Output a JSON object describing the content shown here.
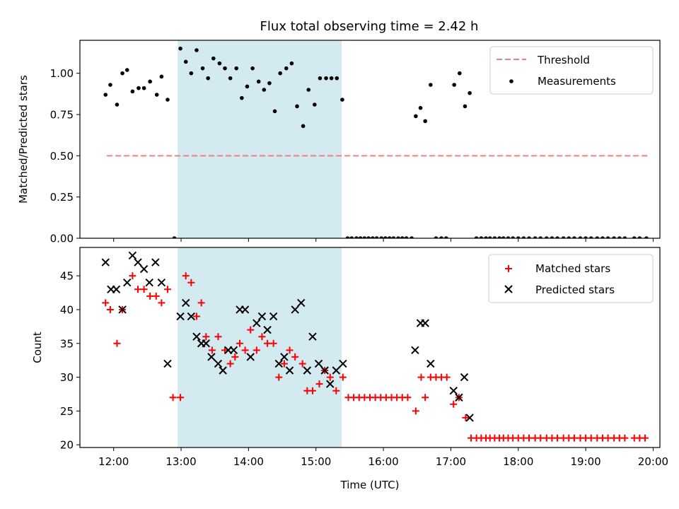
{
  "figure_title": "Flux total observing time = 2.42 h",
  "chart_data": [
    {
      "type": "scatter",
      "panel": "top",
      "ylabel": "Matched/Predicted stars",
      "xlim": [
        11.5,
        20.1
      ],
      "ylim": [
        0,
        1.2
      ],
      "yticks": [
        0.0,
        0.25,
        0.5,
        0.75,
        1.0
      ],
      "ytick_labels": [
        "0.00",
        "0.25",
        "0.50",
        "0.75",
        "1.00"
      ],
      "grid": false,
      "legend": "top-right",
      "highlight_span": [
        12.95,
        15.38
      ],
      "colors": {
        "span": "#d3eaf1",
        "threshold": "#f08080",
        "measurements": "#000000"
      },
      "threshold": {
        "name": "Threshold",
        "y": 0.5,
        "x_start": 11.9,
        "x_end": 19.92
      },
      "measurements": {
        "name": "Measurements",
        "x": [
          11.88,
          11.95,
          12.05,
          12.13,
          12.2,
          12.28,
          12.37,
          12.45,
          12.54,
          12.64,
          12.71,
          12.8,
          12.9,
          12.99,
          13.07,
          13.15,
          13.23,
          13.32,
          13.4,
          13.48,
          13.57,
          13.65,
          13.73,
          13.82,
          13.9,
          13.98,
          14.06,
          14.15,
          14.23,
          14.31,
          14.39,
          14.47,
          14.56,
          14.64,
          14.72,
          14.81,
          14.89,
          14.98,
          15.06,
          15.15,
          15.23,
          15.31,
          15.39,
          15.47,
          15.53,
          15.6,
          15.66,
          15.72,
          15.78,
          15.84,
          15.9,
          15.97,
          16.03,
          16.09,
          16.15,
          16.22,
          16.28,
          16.34,
          16.42,
          16.48,
          16.55,
          16.62,
          16.7,
          16.78,
          16.86,
          16.93,
          17.05,
          17.13,
          17.21,
          17.28,
          17.38,
          17.45,
          17.52,
          17.58,
          17.65,
          17.72,
          17.78,
          17.85,
          17.92,
          18.0,
          18.08,
          18.16,
          18.25,
          18.33,
          18.42,
          18.5,
          18.58,
          18.67,
          18.75,
          18.83,
          18.92,
          19.0,
          19.08,
          19.17,
          19.25,
          19.33,
          19.42,
          19.5,
          19.58,
          19.72,
          19.8,
          19.9
        ],
        "y": [
          0.87,
          0.93,
          0.81,
          1.0,
          1.02,
          0.89,
          0.91,
          0.91,
          0.95,
          0.87,
          0.98,
          0.84,
          0.0,
          1.15,
          1.07,
          1.0,
          1.14,
          1.03,
          0.97,
          1.09,
          1.06,
          1.03,
          0.97,
          1.03,
          0.85,
          0.92,
          1.03,
          0.95,
          0.9,
          0.94,
          0.77,
          1.0,
          1.03,
          1.06,
          0.8,
          0.68,
          0.9,
          0.81,
          0.97,
          0.97,
          0.97,
          0.97,
          0.84,
          0.0,
          0.0,
          0.0,
          0.0,
          0.0,
          0.0,
          0.0,
          0.0,
          0.0,
          0.0,
          0.0,
          0.0,
          0.0,
          0.0,
          0.0,
          0.0,
          0.74,
          0.79,
          0.71,
          0.93,
          0.0,
          0.0,
          0.0,
          0.93,
          1.0,
          0.8,
          0.88,
          0.0,
          0.0,
          0.0,
          0.0,
          0.0,
          0.0,
          0.0,
          0.0,
          0.0,
          0.0,
          0.0,
          0.0,
          0.0,
          0.0,
          0.0,
          0.0,
          0.0,
          0.0,
          0.0,
          0.0,
          0.0,
          0.0,
          0.0,
          0.0,
          0.0,
          0.0,
          0.0,
          0.0,
          0.0,
          0.0,
          0.0,
          0.0
        ]
      }
    },
    {
      "type": "scatter",
      "panel": "bottom",
      "xlabel": "Time (UTC)",
      "ylabel": "Count",
      "xlim": [
        11.5,
        20.1
      ],
      "ylim": [
        19.6,
        49.2
      ],
      "yticks": [
        20,
        25,
        30,
        35,
        40,
        45
      ],
      "ytick_labels": [
        "20",
        "25",
        "30",
        "35",
        "40",
        "45"
      ],
      "xticks": [
        12,
        13,
        14,
        15,
        16,
        17,
        18,
        19,
        20
      ],
      "xtick_labels": [
        "12:00",
        "13:00",
        "14:00",
        "15:00",
        "16:00",
        "17:00",
        "18:00",
        "19:00",
        "20:00"
      ],
      "grid": false,
      "legend": "top-right",
      "highlight_span": [
        12.95,
        15.38
      ],
      "colors": {
        "span": "#d3eaf1",
        "matched": "#ff0000",
        "predicted": "#000000"
      },
      "series": [
        {
          "name": "Matched stars",
          "marker": "plus",
          "x": [
            11.88,
            11.95,
            12.05,
            12.13,
            12.28,
            12.36,
            12.45,
            12.54,
            12.63,
            12.71,
            12.8,
            12.88,
            12.99,
            13.07,
            13.15,
            13.23,
            13.3,
            13.37,
            13.46,
            13.55,
            13.65,
            13.73,
            13.8,
            13.87,
            13.95,
            14.03,
            14.12,
            14.2,
            14.28,
            14.37,
            14.45,
            14.53,
            14.61,
            14.69,
            14.8,
            14.87,
            14.95,
            15.05,
            15.13,
            15.21,
            15.3,
            15.4,
            15.48,
            15.56,
            15.64,
            15.72,
            15.8,
            15.88,
            15.96,
            16.04,
            16.12,
            16.2,
            16.28,
            16.36,
            16.48,
            16.56,
            16.62,
            16.7,
            16.78,
            16.86,
            16.94,
            17.04,
            17.12,
            17.22,
            17.3,
            17.38,
            17.45,
            17.52,
            17.58,
            17.65,
            17.72,
            17.78,
            17.85,
            17.92,
            18.0,
            18.08,
            18.16,
            18.25,
            18.33,
            18.42,
            18.5,
            18.58,
            18.67,
            18.75,
            18.83,
            18.92,
            19.0,
            19.08,
            19.17,
            19.25,
            19.33,
            19.42,
            19.5,
            19.58,
            19.72,
            19.8,
            19.88
          ],
          "y": [
            41,
            40,
            35,
            40,
            45,
            43,
            43,
            42,
            42,
            41,
            43,
            27,
            27,
            45,
            44,
            39,
            41,
            36,
            34,
            36,
            34,
            32,
            33,
            35,
            34,
            37,
            34,
            36,
            35,
            35,
            30,
            32,
            34,
            33,
            32,
            28,
            28,
            29,
            31,
            30,
            28,
            30,
            27,
            27,
            27,
            27,
            27,
            27,
            27,
            27,
            27,
            27,
            27,
            27,
            25,
            30,
            27,
            30,
            30,
            30,
            30,
            26,
            27,
            24,
            21,
            21,
            21,
            21,
            21,
            21,
            21,
            21,
            21,
            21,
            21,
            21,
            21,
            21,
            21,
            21,
            21,
            21,
            21,
            21,
            21,
            21,
            21,
            21,
            21,
            21,
            21,
            21,
            21,
            21,
            21,
            21,
            21
          ]
        },
        {
          "name": "Predicted stars",
          "marker": "x",
          "x": [
            11.88,
            11.96,
            12.04,
            12.13,
            12.2,
            12.28,
            12.36,
            12.45,
            12.53,
            12.62,
            12.71,
            12.8,
            12.99,
            13.07,
            13.15,
            13.23,
            13.3,
            13.37,
            13.45,
            13.55,
            13.62,
            13.7,
            13.78,
            13.87,
            13.95,
            14.03,
            14.12,
            14.2,
            14.28,
            14.37,
            14.45,
            14.53,
            14.61,
            14.69,
            14.78,
            14.87,
            14.95,
            15.04,
            15.13,
            15.21,
            15.3,
            15.4,
            16.47,
            16.55,
            16.62,
            16.7,
            17.04,
            17.12,
            17.2,
            17.28
          ],
          "y": [
            47,
            43,
            43,
            40,
            44,
            48,
            47,
            46,
            44,
            47,
            44,
            32,
            39,
            41,
            39,
            36,
            35,
            35,
            33,
            32,
            31,
            34,
            34,
            40,
            40,
            33,
            38,
            39,
            37,
            39,
            32,
            33,
            31,
            40,
            41,
            31,
            36,
            32,
            31,
            29,
            31,
            32,
            34,
            38,
            38,
            32,
            28,
            27,
            30,
            24
          ]
        }
      ]
    }
  ]
}
